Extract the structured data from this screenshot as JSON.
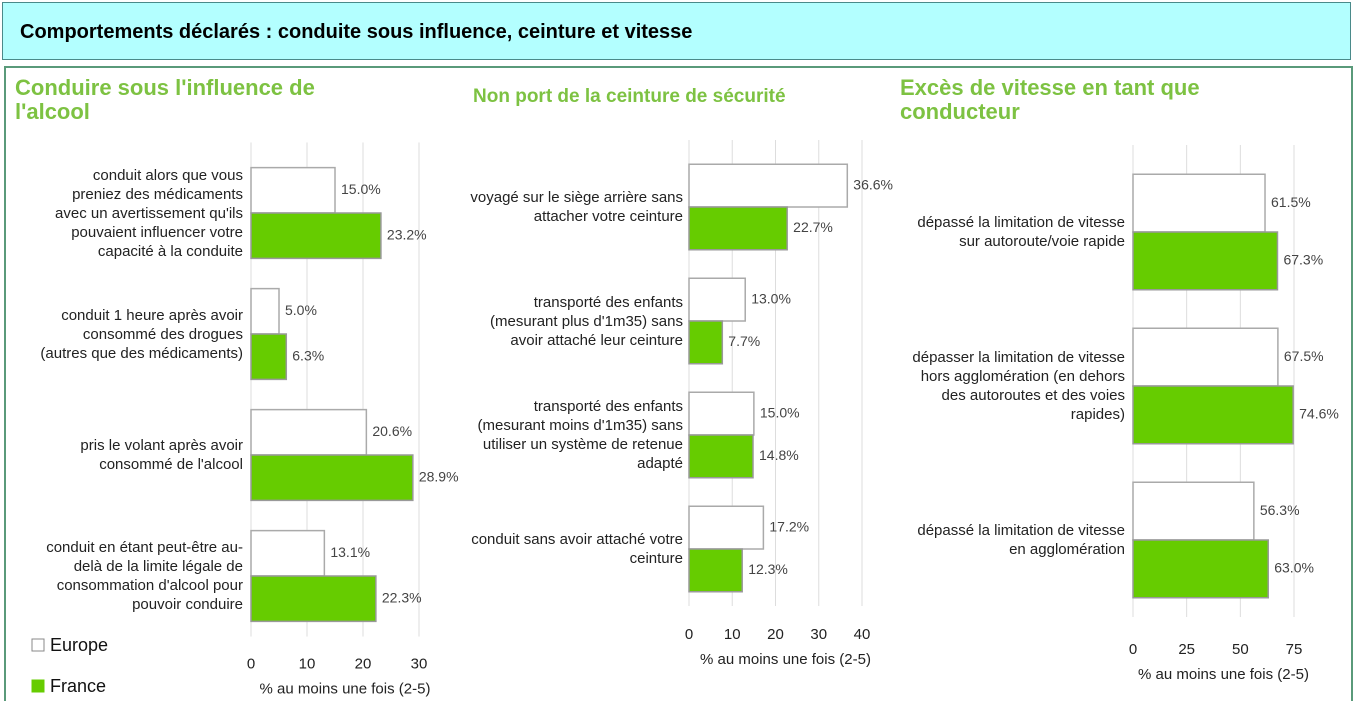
{
  "header": {
    "title": "Comportements déclarés : conduite sous influence, ceinture et vitesse"
  },
  "chart_data": [
    {
      "type": "barh",
      "title": "Conduire sous l'influence de l'alcool",
      "categories": [
        "conduit alors que vous preniez des médicaments avec un avertissement qu'ils pouvaient influencer votre capacité à la conduite",
        "conduit 1 heure après avoir consommé des drogues (autres que des médicaments)",
        "pris le volant après avoir consommé de l'alcool",
        "conduit en étant peut-être au-delà de la limite légale de consommation d'alcool pour pouvoir conduire"
      ],
      "series": [
        {
          "name": "Europe",
          "color": "#ffffff",
          "values": [
            15.0,
            5.0,
            20.6,
            13.1
          ],
          "value_labels": [
            "15.0%",
            "5.0%",
            "20.6%",
            "13.1%"
          ]
        },
        {
          "name": "France",
          "color": "#66cc00",
          "values": [
            23.2,
            6.3,
            28.9,
            22.3
          ],
          "value_labels": [
            "23.2%",
            "6.3%",
            "28.9%",
            "22.3%"
          ]
        }
      ],
      "xlabel": "% au moins une fois (2-5)",
      "xlim": [
        0,
        30
      ],
      "xticks": [
        0,
        10,
        20,
        30
      ],
      "grid": true
    },
    {
      "type": "barh",
      "title": "Non port de la ceinture de sécurité",
      "categories": [
        "voyagé sur le siège arrière sans attacher votre ceinture",
        "transporté des enfants (mesurant plus d'1m35) sans avoir attaché leur ceinture",
        "transporté des enfants (mesurant moins d'1m35) sans utiliser un système de retenue adapté",
        "conduit sans avoir attaché votre ceinture"
      ],
      "series": [
        {
          "name": "Europe",
          "color": "#ffffff",
          "values": [
            36.6,
            13.0,
            15.0,
            17.2
          ],
          "value_labels": [
            "36.6%",
            "13.0%",
            "15.0%",
            "17.2%"
          ]
        },
        {
          "name": "France",
          "color": "#66cc00",
          "values": [
            22.7,
            7.7,
            14.8,
            12.3
          ],
          "value_labels": [
            "22.7%",
            "7.7%",
            "14.8%",
            "12.3%"
          ]
        }
      ],
      "xlabel": "% au moins une fois (2-5)",
      "xlim": [
        0,
        40
      ],
      "xticks": [
        0,
        10,
        20,
        30,
        40
      ],
      "grid": true
    },
    {
      "type": "barh",
      "title": "Excès de vitesse en tant que conducteur",
      "categories": [
        "dépassé la limitation de vitesse sur autoroute/voie rapide",
        "dépasser la limitation de vitesse hors agglomération (en dehors des autoroutes et des voies rapides)",
        "dépassé la limitation de vitesse en agglomération"
      ],
      "series": [
        {
          "name": "Europe",
          "color": "#ffffff",
          "values": [
            61.5,
            67.5,
            56.3
          ],
          "value_labels": [
            "61.5%",
            "67.5%",
            "56.3%"
          ]
        },
        {
          "name": "France",
          "color": "#66cc00",
          "values": [
            67.3,
            74.6,
            63.0
          ],
          "value_labels": [
            "67.3%",
            "74.6%",
            "63.0%"
          ]
        }
      ],
      "xlabel": "% au moins une fois (2-5)",
      "xlim": [
        0,
        75
      ],
      "xticks": [
        0,
        25,
        50,
        75
      ],
      "grid": true
    }
  ]
}
